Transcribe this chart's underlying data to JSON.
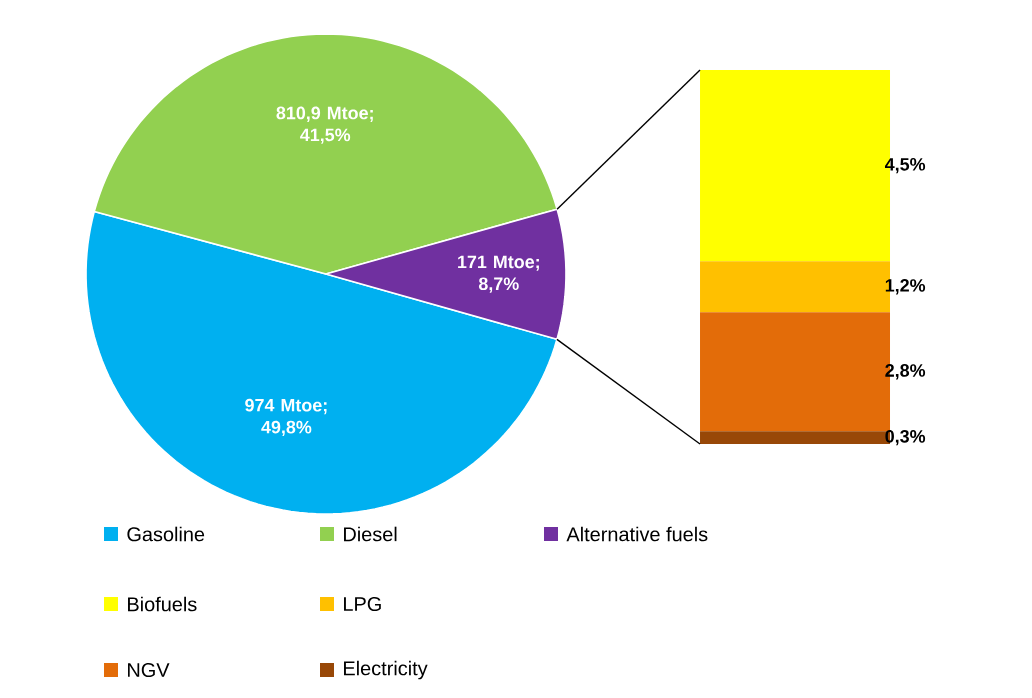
{
  "chart_data": [
    {
      "type": "pie",
      "categories": [
        "Gasoline",
        "Diesel",
        "Alternative fuels"
      ],
      "values": [
        974,
        810.9,
        171
      ],
      "colors": [
        "#00b0f0",
        "#92d050",
        "#7030a0"
      ],
      "value_labels": [
        "974 Mtoe; 49,8%",
        "810,9 Mtoe; 41,5%",
        "171 Mtoe; 8,7%"
      ],
      "legend": "bottom"
    },
    {
      "type": "bar",
      "stacked": true,
      "categories": [
        null
      ],
      "legend": "bottom",
      "series": [
        {
          "name": "Electricity",
          "color": "#984807",
          "values": [
            0.3
          ],
          "value_labels": [
            "0,3%"
          ]
        },
        {
          "name": "NGV",
          "color": "#e36c09",
          "values": [
            2.8
          ],
          "value_labels": [
            "2,8%"
          ]
        },
        {
          "name": "LPG",
          "color": "#ffc000",
          "values": [
            1.2
          ],
          "value_labels": [
            "1,2%"
          ]
        },
        {
          "name": "Biofuels",
          "color": "#ffff00",
          "values": [
            4.5
          ],
          "value_labels": [
            "4,5%"
          ]
        }
      ]
    }
  ]
}
